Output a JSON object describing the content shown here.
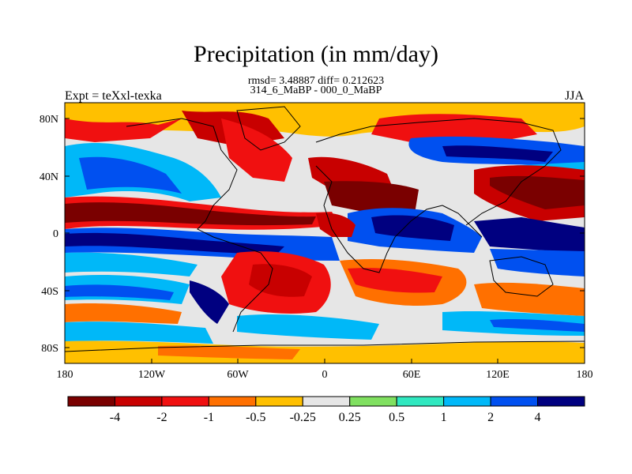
{
  "title": "Precipitation (in mm/day)",
  "stats": "rmsd= 3.48887 diff= 0.212623",
  "subtitle": "314_6_MaBP - 000_0_MaBP",
  "expt": "Expt = teXxl-texka",
  "season": "JJA",
  "map": {
    "lat_ticks": [
      "80N",
      "40N",
      "0",
      "40S",
      "80S"
    ],
    "lon_ticks": [
      "180",
      "120W",
      "60W",
      "0",
      "60E",
      "120E",
      "180"
    ]
  },
  "colorbar": {
    "colors": [
      "#7a0000",
      "#c80000",
      "#f01010",
      "#ff7000",
      "#ffc000",
      "#e6e6e6",
      "#80e060",
      "#30e8c0",
      "#00b8f8",
      "#0050f0",
      "#000080"
    ],
    "labels": [
      "-4",
      "-2",
      "-1",
      "-0.5",
      "-0.25",
      "0.25",
      "0.5",
      "1",
      "2",
      "4"
    ]
  }
}
